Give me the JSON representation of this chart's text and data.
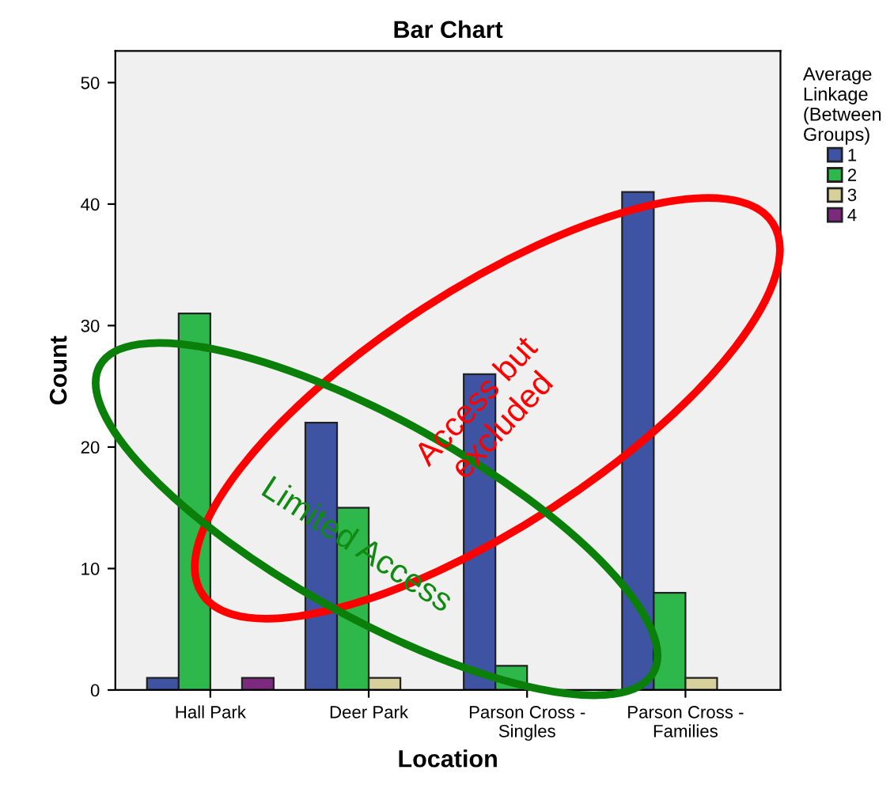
{
  "chart_data": {
    "type": "bar",
    "title": "Bar Chart",
    "xlabel": "Location",
    "ylabel": "Count",
    "legend_title": "Average\nLinkage\n(Between\nGroups)",
    "categories": [
      "Hall Park",
      "Deer Park",
      "Parson Cross -\nSingles",
      "Parson Cross -\nFamilies"
    ],
    "series": [
      {
        "name": "1",
        "color": "#3e54a3",
        "values": [
          1,
          22,
          26,
          41
        ]
      },
      {
        "name": "2",
        "color": "#2eb84b",
        "values": [
          31,
          15,
          2,
          8
        ]
      },
      {
        "name": "3",
        "color": "#d5d09c",
        "values": [
          0,
          1,
          0,
          1
        ]
      },
      {
        "name": "4",
        "color": "#7b2a7e",
        "values": [
          1,
          0,
          0,
          0
        ]
      }
    ],
    "ylim": [
      0,
      52.6
    ],
    "yticks": [
      0,
      10,
      20,
      30,
      40,
      50
    ],
    "grid": false,
    "legend": "right",
    "annotations": [
      "Access but\nexcluded",
      "Limited Access"
    ]
  }
}
